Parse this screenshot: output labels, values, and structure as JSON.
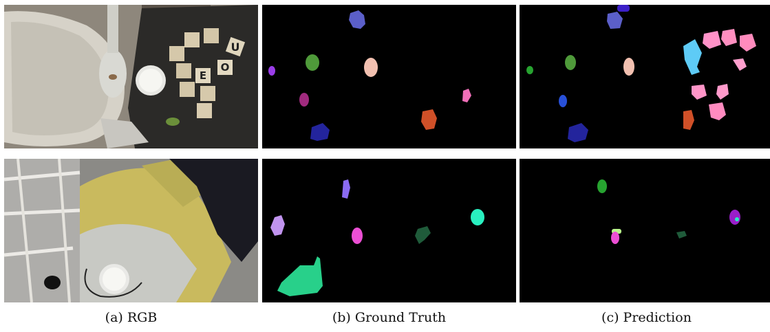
{
  "captions": {
    "rgb": "(a) RGB",
    "ground_truth": "(b) Ground Truth",
    "prediction": "(c) Prediction"
  },
  "tile_letters": [
    "U",
    "O",
    "E",
    "O"
  ],
  "colors": {
    "background": "#ffffff",
    "mask_background": "#000000"
  }
}
